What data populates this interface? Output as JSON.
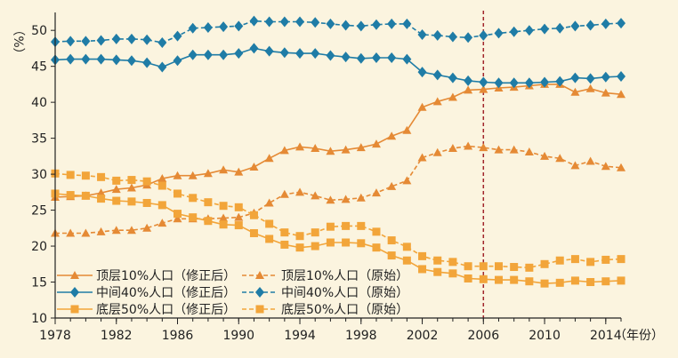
{
  "chart_data": {
    "type": "line",
    "ylabel": "（%）",
    "xlabel": "（年份）",
    "ylim": [
      10,
      52
    ],
    "xlim": [
      1978,
      2015
    ],
    "yticks": [
      10,
      15,
      20,
      25,
      30,
      35,
      40,
      45,
      50
    ],
    "xticks": [
      1978,
      1982,
      1986,
      1990,
      1994,
      1998,
      2002,
      2006,
      2010,
      2014
    ],
    "annotation": {
      "type": "vertical-dashed-line",
      "x": 2006
    },
    "x": [
      1978,
      1979,
      1980,
      1981,
      1982,
      1983,
      1984,
      1985,
      1986,
      1987,
      1988,
      1989,
      1990,
      1991,
      1992,
      1993,
      1994,
      1995,
      1996,
      1997,
      1998,
      1999,
      2000,
      2001,
      2002,
      2003,
      2004,
      2005,
      2006,
      2007,
      2008,
      2009,
      2010,
      2011,
      2012,
      2013,
      2014,
      2015
    ],
    "series": [
      {
        "name": "顶层10%人口（修正后）",
        "color": "#e58a35",
        "dash": "solid",
        "marker": "triangle",
        "values": [
          26.8,
          26.9,
          27.0,
          27.4,
          27.9,
          28.1,
          28.5,
          29.4,
          29.8,
          29.8,
          30.1,
          30.6,
          30.3,
          31.0,
          32.2,
          33.3,
          33.8,
          33.6,
          33.2,
          33.4,
          33.7,
          34.2,
          35.3,
          36.1,
          39.3,
          40.1,
          40.7,
          41.7,
          41.8,
          42.0,
          42.1,
          42.3,
          42.5,
          42.5,
          41.4,
          41.9,
          41.3,
          41.1
        ]
      },
      {
        "name": "顶层10%人口（原始）",
        "color": "#e58a35",
        "dash": "dashed",
        "marker": "triangle",
        "values": [
          21.8,
          21.8,
          21.8,
          22.0,
          22.2,
          22.2,
          22.5,
          23.2,
          23.8,
          23.8,
          23.8,
          23.9,
          24.0,
          24.6,
          26.0,
          27.2,
          27.5,
          27.0,
          26.4,
          26.5,
          26.7,
          27.4,
          28.3,
          29.1,
          32.3,
          33.0,
          33.6,
          33.9,
          33.7,
          33.4,
          33.4,
          33.1,
          32.5,
          32.2,
          31.2,
          31.8,
          31.1,
          30.9
        ]
      },
      {
        "name": "中间40%人口（修正后）",
        "color": "#1f7ca6",
        "dash": "solid",
        "marker": "diamond",
        "values": [
          45.9,
          46.0,
          46.0,
          46.0,
          45.9,
          45.8,
          45.5,
          44.9,
          45.8,
          46.6,
          46.6,
          46.6,
          46.8,
          47.5,
          47.1,
          46.9,
          46.8,
          46.8,
          46.5,
          46.3,
          46.1,
          46.2,
          46.2,
          46.0,
          44.2,
          43.8,
          43.4,
          43.0,
          42.8,
          42.7,
          42.7,
          42.7,
          42.8,
          42.9,
          43.4,
          43.3,
          43.5,
          43.6
        ]
      },
      {
        "name": "中间40%人口（原始）",
        "color": "#1f7ca6",
        "dash": "dashed",
        "marker": "diamond",
        "values": [
          48.4,
          48.5,
          48.5,
          48.6,
          48.8,
          48.8,
          48.7,
          48.3,
          49.2,
          50.3,
          50.4,
          50.5,
          50.6,
          51.3,
          51.2,
          51.2,
          51.2,
          51.1,
          50.9,
          50.7,
          50.6,
          50.8,
          50.9,
          50.9,
          49.4,
          49.3,
          49.1,
          49.0,
          49.3,
          49.6,
          49.8,
          50.0,
          50.2,
          50.3,
          50.6,
          50.7,
          50.9,
          51.0
        ]
      },
      {
        "name": "底层50%人口（修正后）",
        "color": "#f2a53a",
        "dash": "solid",
        "marker": "square",
        "values": [
          27.3,
          27.1,
          27.0,
          26.6,
          26.3,
          26.2,
          26.0,
          25.7,
          24.5,
          24.0,
          23.5,
          23.0,
          22.9,
          21.8,
          21.0,
          20.2,
          19.8,
          20.0,
          20.5,
          20.5,
          20.4,
          19.8,
          18.7,
          18.0,
          16.8,
          16.4,
          16.2,
          15.5,
          15.4,
          15.3,
          15.3,
          15.1,
          14.8,
          14.9,
          15.2,
          15.0,
          15.1,
          15.2
        ]
      },
      {
        "name": "底层50%人口（原始）",
        "color": "#f2a53a",
        "dash": "dashed",
        "marker": "square",
        "values": [
          30.1,
          29.9,
          29.8,
          29.6,
          29.1,
          29.2,
          29.0,
          28.4,
          27.3,
          26.7,
          26.1,
          25.6,
          25.4,
          24.3,
          23.1,
          21.9,
          21.4,
          21.9,
          22.7,
          22.8,
          22.8,
          22.0,
          20.8,
          19.9,
          18.6,
          18.0,
          17.8,
          17.2,
          17.2,
          17.2,
          17.1,
          17.0,
          17.5,
          18.0,
          18.2,
          17.8,
          18.1,
          18.2
        ]
      }
    ]
  }
}
